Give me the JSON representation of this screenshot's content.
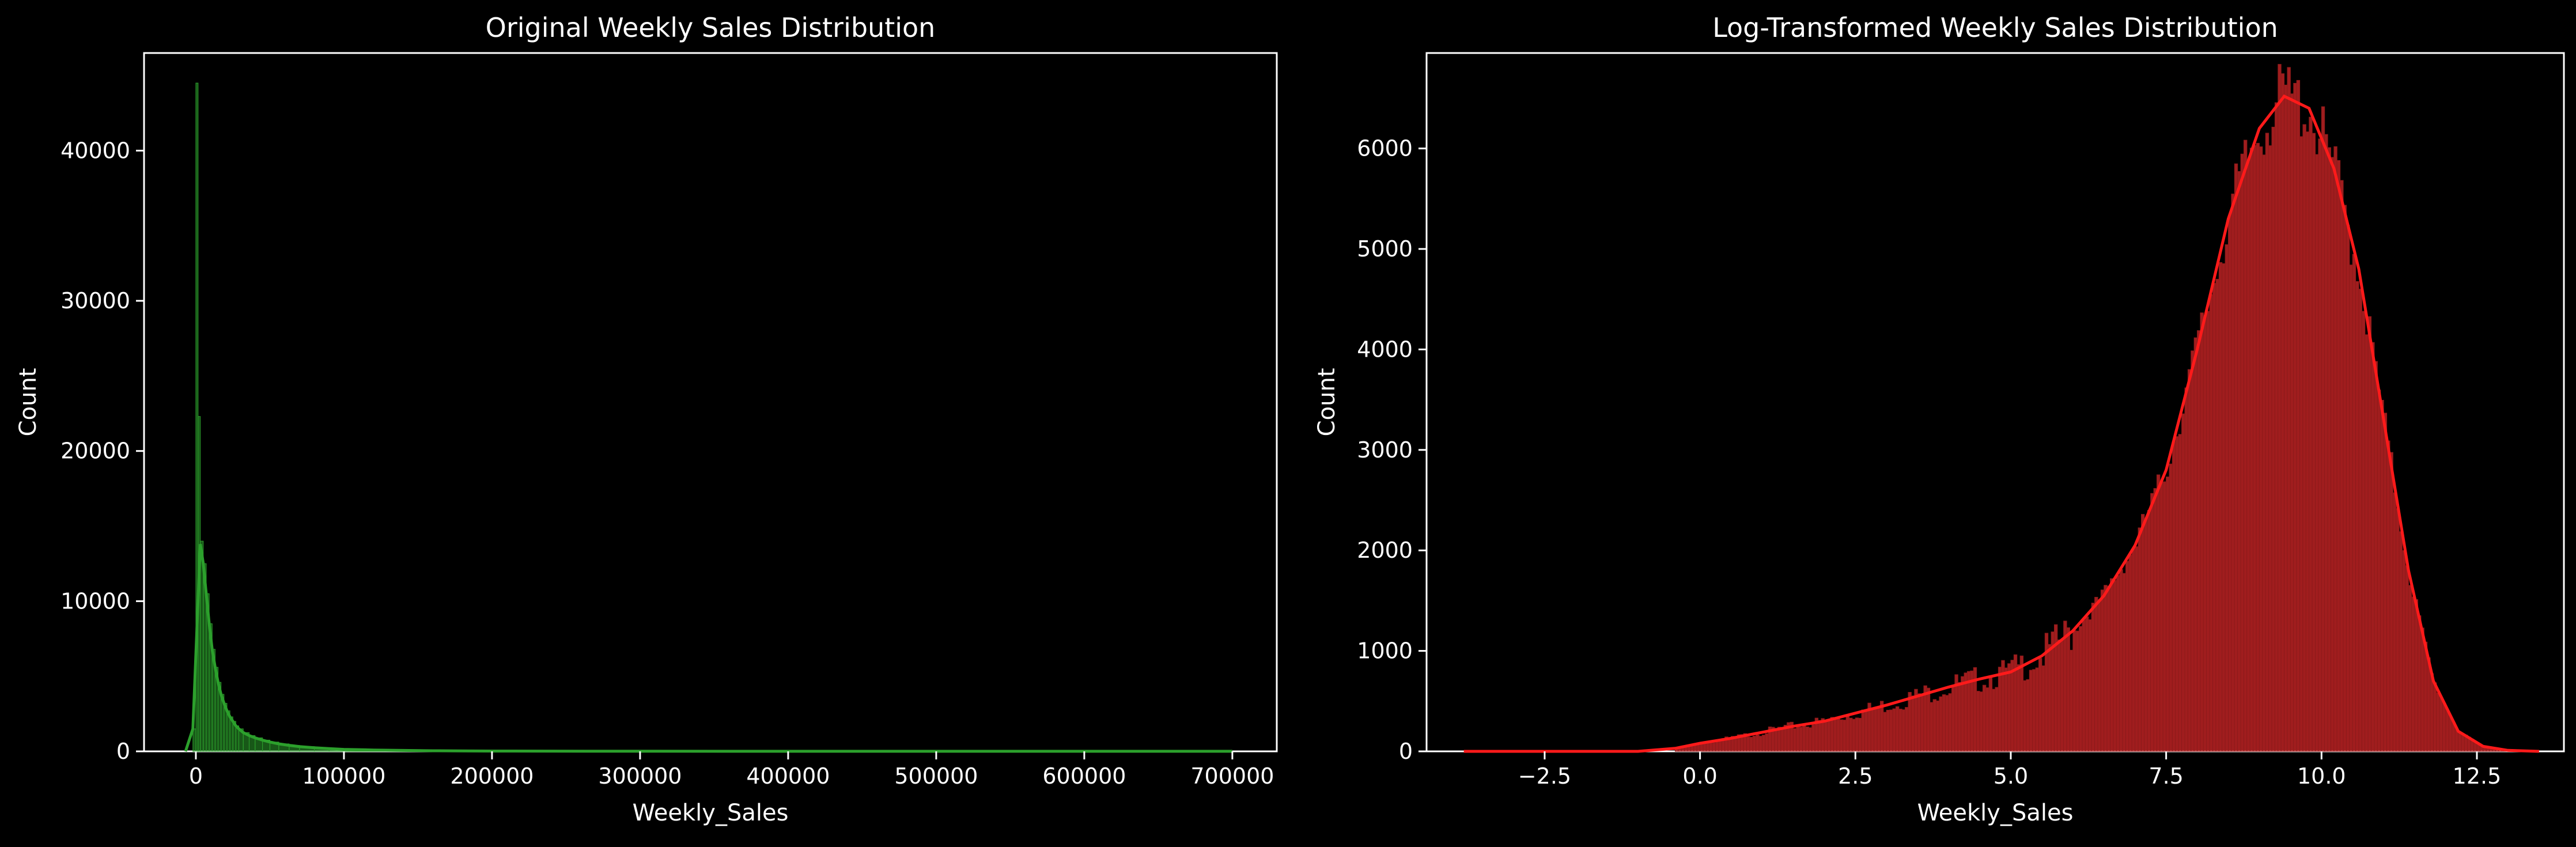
{
  "chart_data": [
    {
      "type": "histogram",
      "title": "Original Weekly Sales Distribution",
      "xlabel": "Weekly_Sales",
      "ylabel": "Count",
      "xlim": [
        -35000,
        730000
      ],
      "ylim": [
        0,
        46500
      ],
      "xticks": [
        0,
        100000,
        200000,
        300000,
        400000,
        500000,
        600000,
        700000
      ],
      "yticks": [
        0,
        10000,
        20000,
        30000,
        40000
      ],
      "bar_color": "#2ca02c",
      "kde": true,
      "bins": [
        {
          "x": -2000,
          "count": 1500
        },
        {
          "x": 0,
          "count": 44500
        },
        {
          "x": 1500,
          "count": 22300
        },
        {
          "x": 3000,
          "count": 14000
        },
        {
          "x": 5000,
          "count": 12500
        },
        {
          "x": 7000,
          "count": 10500
        },
        {
          "x": 9000,
          "count": 8500
        },
        {
          "x": 11000,
          "count": 6800
        },
        {
          "x": 13000,
          "count": 5600
        },
        {
          "x": 15000,
          "count": 4600
        },
        {
          "x": 17000,
          "count": 3800
        },
        {
          "x": 19000,
          "count": 3200
        },
        {
          "x": 21000,
          "count": 2700
        },
        {
          "x": 23000,
          "count": 2300
        },
        {
          "x": 25000,
          "count": 2000
        },
        {
          "x": 27000,
          "count": 1700
        },
        {
          "x": 29000,
          "count": 1500
        },
        {
          "x": 32000,
          "count": 1250
        },
        {
          "x": 36000,
          "count": 1050
        },
        {
          "x": 40000,
          "count": 900
        },
        {
          "x": 45000,
          "count": 750
        },
        {
          "x": 50000,
          "count": 620
        },
        {
          "x": 56000,
          "count": 500
        },
        {
          "x": 63000,
          "count": 400
        },
        {
          "x": 70000,
          "count": 320
        },
        {
          "x": 80000,
          "count": 240
        },
        {
          "x": 90000,
          "count": 180
        },
        {
          "x": 100000,
          "count": 130
        },
        {
          "x": 120000,
          "count": 90
        },
        {
          "x": 140000,
          "count": 60
        },
        {
          "x": 160000,
          "count": 40
        },
        {
          "x": 180000,
          "count": 30
        },
        {
          "x": 200000,
          "count": 20
        }
      ]
    },
    {
      "type": "histogram",
      "title": "Log-Transformed Weekly Sales Distribution",
      "xlabel": "Weekly_Sales",
      "ylabel": "Count",
      "xlim": [
        -4.4,
        13.9
      ],
      "ylim": [
        0,
        6950
      ],
      "xticks": [
        -2.5,
        0.0,
        2.5,
        5.0,
        7.5,
        10.0,
        12.5
      ],
      "xtick_labels": [
        "−2.5",
        "0.0",
        "2.5",
        "5.0",
        "7.5",
        "10.0",
        "12.5"
      ],
      "yticks": [
        0,
        1000,
        2000,
        3000,
        4000,
        5000,
        6000
      ],
      "bar_color": "#d62728",
      "kde": true,
      "kde_profile": [
        {
          "x": -3.8,
          "count": 0
        },
        {
          "x": -1.0,
          "count": 0
        },
        {
          "x": -0.4,
          "count": 30
        },
        {
          "x": 0.0,
          "count": 80
        },
        {
          "x": 0.5,
          "count": 130
        },
        {
          "x": 1.0,
          "count": 190
        },
        {
          "x": 1.5,
          "count": 250
        },
        {
          "x": 2.0,
          "count": 300
        },
        {
          "x": 2.5,
          "count": 380
        },
        {
          "x": 3.0,
          "count": 460
        },
        {
          "x": 3.5,
          "count": 550
        },
        {
          "x": 4.0,
          "count": 640
        },
        {
          "x": 4.5,
          "count": 720
        },
        {
          "x": 5.0,
          "count": 790
        },
        {
          "x": 5.5,
          "count": 950
        },
        {
          "x": 6.0,
          "count": 1200
        },
        {
          "x": 6.5,
          "count": 1550
        },
        {
          "x": 7.0,
          "count": 2050
        },
        {
          "x": 7.5,
          "count": 2800
        },
        {
          "x": 8.0,
          "count": 4000
        },
        {
          "x": 8.5,
          "count": 5300
        },
        {
          "x": 9.0,
          "count": 6200
        },
        {
          "x": 9.4,
          "count": 6520
        },
        {
          "x": 9.8,
          "count": 6400
        },
        {
          "x": 10.2,
          "count": 5800
        },
        {
          "x": 10.6,
          "count": 4800
        },
        {
          "x": 11.0,
          "count": 3300
        },
        {
          "x": 11.4,
          "count": 1800
        },
        {
          "x": 11.8,
          "count": 700
        },
        {
          "x": 12.2,
          "count": 200
        },
        {
          "x": 12.6,
          "count": 50
        },
        {
          "x": 13.0,
          "count": 10
        },
        {
          "x": 13.5,
          "count": 0
        }
      ]
    }
  ]
}
